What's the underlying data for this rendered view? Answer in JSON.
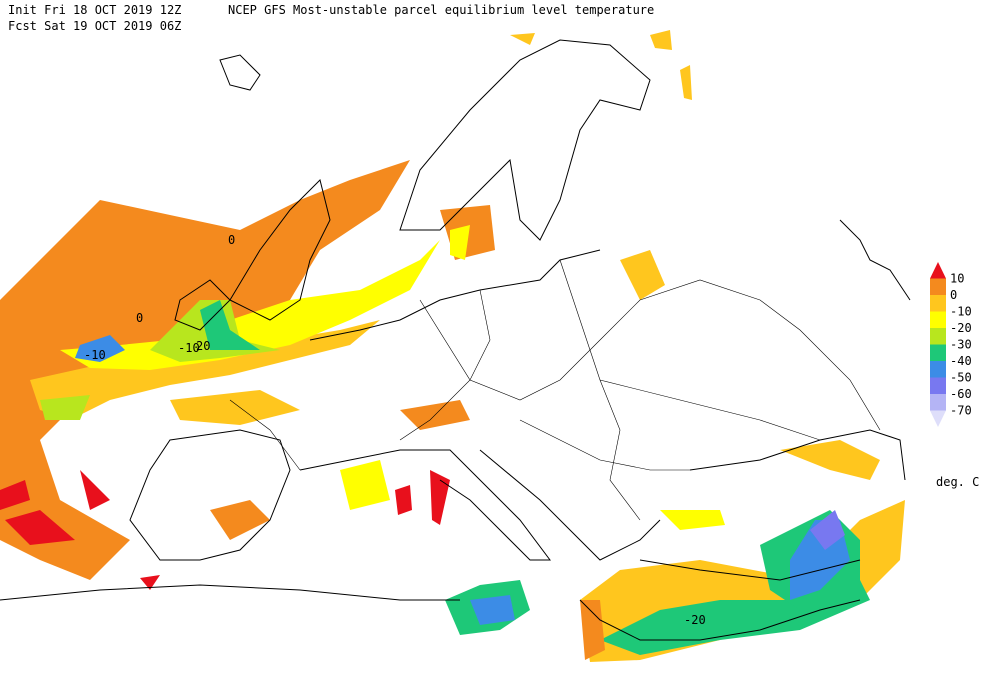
{
  "header": {
    "init": "Init  Fri 18 OCT 2019 12Z",
    "title": "NCEP GFS Most-unstable parcel equilibrium level temperature",
    "fcst": "Fcst Sat 19 OCT 2019 06Z"
  },
  "legend": {
    "labels": [
      "10",
      "0",
      "-10",
      "-20",
      "-30",
      "-40",
      "-50",
      "-60",
      "-70"
    ],
    "colors": [
      "#e8101c",
      "#f48a1e",
      "#ffc61e",
      "#ffff00",
      "#b8e61e",
      "#1ec878",
      "#3c8ce6",
      "#7878f0",
      "#b4b4f5",
      "#dedefa"
    ],
    "units": "deg. C"
  },
  "contour_labels": [
    "0",
    "0",
    "-10",
    "-10",
    "20",
    "-20"
  ]
}
